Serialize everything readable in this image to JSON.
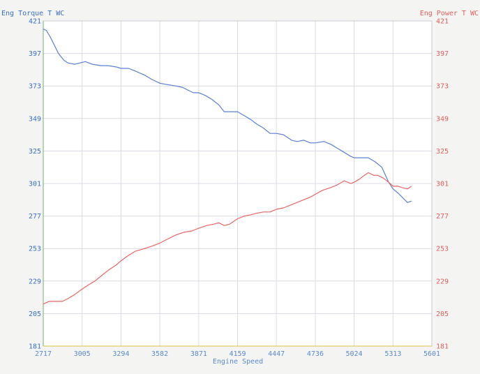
{
  "chart_data": {
    "type": "line",
    "title": "",
    "xlabel": "Engine Speed",
    "ylabel_left": "Eng Torque T WC",
    "ylabel_right": "Eng Power T WC",
    "xlim": [
      2717,
      5601
    ],
    "ylim": [
      181,
      421
    ],
    "x_ticks": [
      2717,
      3005,
      3294,
      3582,
      3871,
      4159,
      4447,
      4736,
      5024,
      5313,
      5601
    ],
    "y_ticks": [
      181,
      205,
      229,
      253,
      277,
      301,
      325,
      349,
      373,
      397,
      421
    ],
    "grid": true,
    "colors": {
      "torque": "#5b7fd6",
      "power": "#ec6464",
      "left_axis_label": "#3a6fc8",
      "right_axis_label": "#e06060",
      "x_axis_label": "#5a8ad0",
      "grid": "#d8dce4",
      "frame": "#c8ccd4",
      "bottom_axis": "#e0c040",
      "left_axis": "#70b070"
    },
    "series": [
      {
        "name": "Eng Torque T WC",
        "axis": "left",
        "x": [
          2717,
          2740,
          2770,
          2800,
          2830,
          2870,
          2900,
          2950,
          2990,
          3030,
          3080,
          3150,
          3200,
          3260,
          3294,
          3350,
          3400,
          3470,
          3520,
          3582,
          3640,
          3700,
          3750,
          3790,
          3830,
          3871,
          3920,
          3970,
          4020,
          4060,
          4100,
          4159,
          4210,
          4260,
          4300,
          4350,
          4400,
          4447,
          4500,
          4560,
          4600,
          4650,
          4700,
          4736,
          4800,
          4850,
          4900,
          4950,
          5000,
          5024,
          5080,
          5130,
          5180,
          5230,
          5280,
          5313,
          5350,
          5380,
          5420,
          5450
        ],
        "values": [
          415,
          414,
          409,
          403,
          397,
          392,
          390,
          389,
          390,
          391,
          389,
          388,
          388,
          387,
          386,
          386,
          384,
          381,
          378,
          375,
          374,
          373,
          372,
          370,
          368,
          368,
          366,
          363,
          359,
          354,
          354,
          354,
          351,
          348,
          345,
          342,
          338,
          338,
          337,
          333,
          332,
          333,
          331,
          331,
          332,
          330,
          327,
          324,
          321,
          320,
          320,
          320,
          317,
          313,
          302,
          297,
          294,
          291,
          287,
          288
        ]
      },
      {
        "name": "Eng Power T WC",
        "axis": "right",
        "x": [
          2717,
          2760,
          2810,
          2860,
          2900,
          2950,
          3005,
          3050,
          3100,
          3150,
          3200,
          3260,
          3294,
          3350,
          3400,
          3470,
          3530,
          3582,
          3640,
          3700,
          3760,
          3820,
          3871,
          3930,
          3980,
          4020,
          4060,
          4100,
          4159,
          4210,
          4260,
          4300,
          4350,
          4400,
          4447,
          4500,
          4550,
          4600,
          4650,
          4700,
          4736,
          4790,
          4850,
          4900,
          4950,
          5000,
          5024,
          5060,
          5100,
          5130,
          5170,
          5200,
          5240,
          5280,
          5313,
          5350,
          5380,
          5420,
          5450
        ],
        "values": [
          212,
          214,
          214,
          214,
          216,
          219,
          223,
          226,
          229,
          233,
          237,
          241,
          244,
          248,
          251,
          253,
          255,
          257,
          260,
          263,
          265,
          266,
          268,
          270,
          271,
          272,
          270,
          271,
          275,
          277,
          278,
          279,
          280,
          280,
          282,
          283,
          285,
          287,
          289,
          291,
          293,
          296,
          298,
          300,
          303,
          301,
          302,
          304,
          307,
          309,
          307,
          307,
          305,
          302,
          299,
          299,
          298,
          297,
          299
        ]
      }
    ]
  }
}
